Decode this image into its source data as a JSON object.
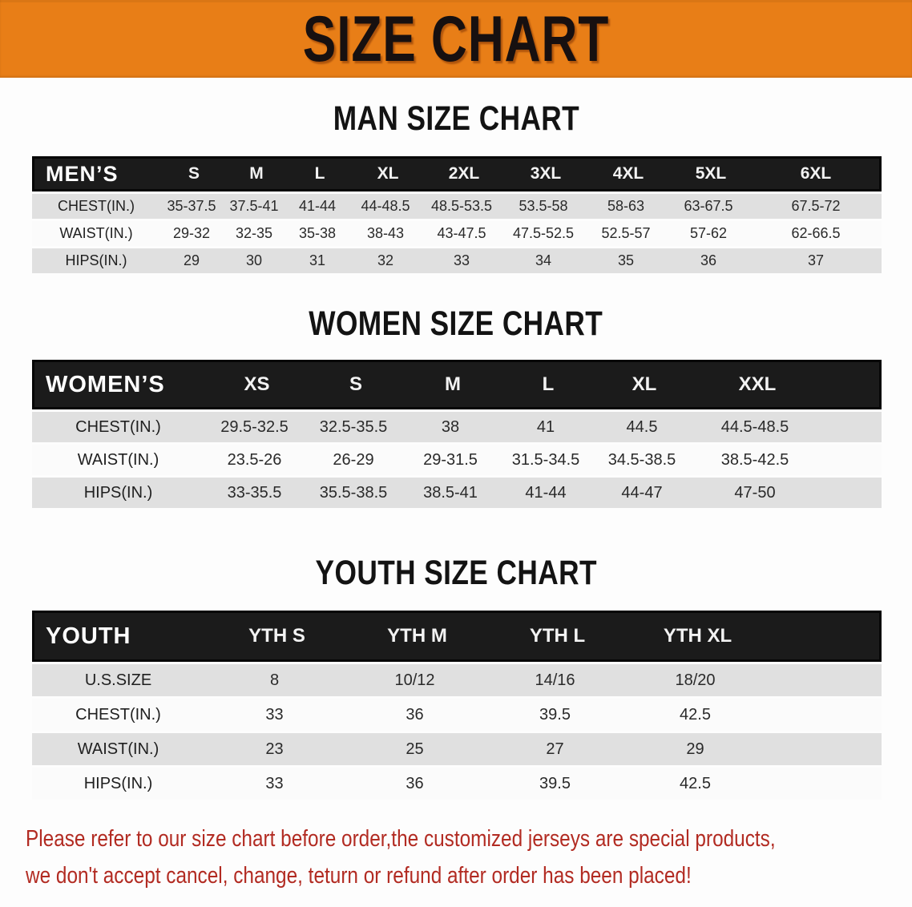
{
  "banner": {
    "title": "SIZE CHART"
  },
  "sections": {
    "men": {
      "heading": "MAN SIZE CHART"
    },
    "women": {
      "heading": "WOMEN SIZE CHART"
    },
    "youth": {
      "heading": "YOUTH SIZE CHART"
    }
  },
  "tables": {
    "men": {
      "header_label": "MEN’S",
      "sizes": [
        "S",
        "M",
        "L",
        "XL",
        "2XL",
        "3XL",
        "4XL",
        "5XL",
        "6XL"
      ],
      "rows": [
        {
          "label": "CHEST(IN.)",
          "values": [
            "35-37.5",
            "37.5-41",
            "41-44",
            "44-48.5",
            "48.5-53.5",
            "53.5-58",
            "58-63",
            "63-67.5",
            "67.5-72"
          ]
        },
        {
          "label": "WAIST(IN.)",
          "values": [
            "29-32",
            "32-35",
            "35-38",
            "38-43",
            "43-47.5",
            "47.5-52.5",
            "52.5-57",
            "57-62",
            "62-66.5"
          ]
        },
        {
          "label": "HIPS(IN.)",
          "values": [
            "29",
            "30",
            "31",
            "32",
            "33",
            "34",
            "35",
            "36",
            "37"
          ]
        }
      ]
    },
    "women": {
      "header_label": "WOMEN’S",
      "sizes": [
        "XS",
        "S",
        "M",
        "L",
        "XL",
        "XXL"
      ],
      "rows": [
        {
          "label": "CHEST(IN.)",
          "values": [
            "29.5-32.5",
            "32.5-35.5",
            "38",
            "41",
            "44.5",
            "44.5-48.5"
          ]
        },
        {
          "label": "WAIST(IN.)",
          "values": [
            "23.5-26",
            "26-29",
            "29-31.5",
            "31.5-34.5",
            "34.5-38.5",
            "38.5-42.5"
          ]
        },
        {
          "label": "HIPS(IN.)",
          "values": [
            "33-35.5",
            "35.5-38.5",
            "38.5-41",
            "41-44",
            "44-47",
            "47-50"
          ]
        }
      ]
    },
    "youth": {
      "header_label": "YOUTH",
      "sizes": [
        "YTH S",
        "YTH M",
        "YTH L",
        "YTH XL"
      ],
      "rows": [
        {
          "label": "U.S.SIZE",
          "values": [
            "8",
            "10/12",
            "14/16",
            "18/20"
          ]
        },
        {
          "label": "CHEST(IN.)",
          "values": [
            "33",
            "36",
            "39.5",
            "42.5"
          ]
        },
        {
          "label": "WAIST(IN.)",
          "values": [
            "23",
            "25",
            "27",
            "29"
          ]
        },
        {
          "label": "HIPS(IN.)",
          "values": [
            "33",
            "36",
            "39.5",
            "42.5"
          ]
        }
      ]
    }
  },
  "note": {
    "line1": "Please refer to our size chart before order,the customized jerseys are special products,",
    "line2": "we don't accept cancel, change, teturn or refund after order has been placed!"
  },
  "colors": {
    "banner_orange": "#e87e17",
    "header_black": "#1b1b1b",
    "row_gray": "#e0e0e0",
    "note_red": "#b22b22"
  }
}
